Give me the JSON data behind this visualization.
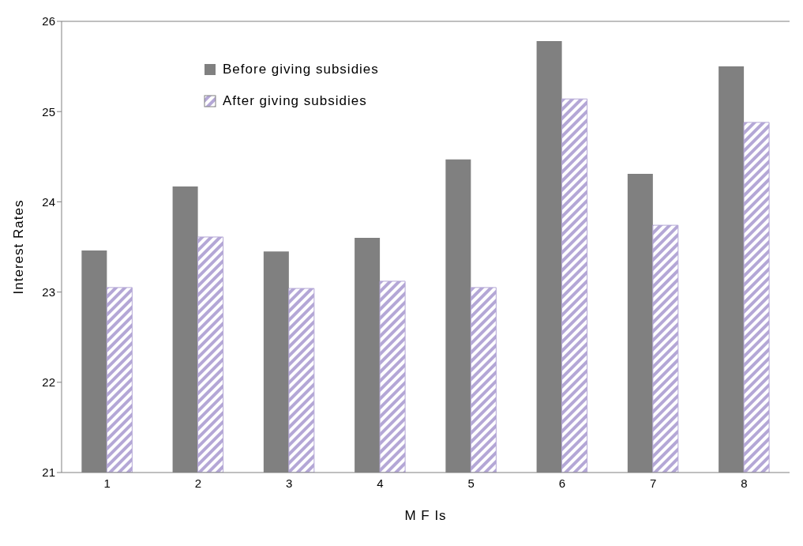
{
  "chart_data": {
    "type": "bar",
    "xlabel": "M F Is",
    "ylabel": "Interest Rates",
    "categories": [
      "1",
      "2",
      "3",
      "4",
      "5",
      "6",
      "7",
      "8"
    ],
    "series": [
      {
        "name": "Before giving subsidies",
        "color": "#808080",
        "values": [
          23.46,
          24.17,
          23.45,
          23.6,
          24.47,
          25.78,
          24.31,
          25.5
        ]
      },
      {
        "name": "After giving subsidies",
        "color": "#b4a7d6",
        "values": [
          23.05,
          23.61,
          23.04,
          23.12,
          23.05,
          25.14,
          23.74,
          24.88
        ]
      }
    ],
    "ylim": [
      21,
      26
    ],
    "yticks": [
      21,
      22,
      23,
      24,
      25,
      26
    ],
    "grid": false,
    "legend": "top left"
  }
}
